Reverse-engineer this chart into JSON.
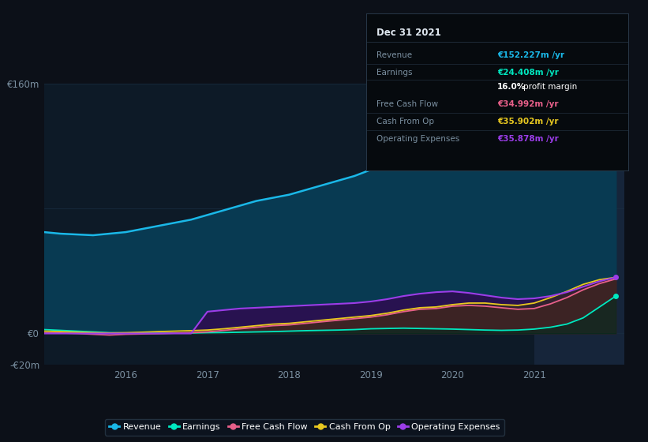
{
  "bg_color": "#0c1018",
  "plot_bg_color": "#0d1a27",
  "highlight_bg_color": "#16253a",
  "grid_color": "#1a2e42",
  "axis_label_color": "#7a8fa0",
  "title_color": "#ffffff",
  "years": [
    2015.0,
    2015.2,
    2015.4,
    2015.6,
    2015.8,
    2016.0,
    2016.2,
    2016.4,
    2016.6,
    2016.8,
    2017.0,
    2017.2,
    2017.4,
    2017.6,
    2017.8,
    2018.0,
    2018.2,
    2018.4,
    2018.6,
    2018.8,
    2019.0,
    2019.2,
    2019.4,
    2019.6,
    2019.8,
    2020.0,
    2020.2,
    2020.4,
    2020.6,
    2020.8,
    2021.0,
    2021.2,
    2021.4,
    2021.6,
    2021.8,
    2022.0
  ],
  "revenue": [
    65,
    64,
    63.5,
    63,
    64,
    65,
    67,
    69,
    71,
    73,
    76,
    79,
    82,
    85,
    87,
    89,
    92,
    95,
    98,
    101,
    105,
    109,
    113,
    116,
    118,
    120,
    117,
    113,
    110,
    109,
    111,
    118,
    127,
    138,
    148,
    152
  ],
  "earnings": [
    2.5,
    2.0,
    1.5,
    1.0,
    0.5,
    0.3,
    0.2,
    0.1,
    0.2,
    0.3,
    0.5,
    0.6,
    0.8,
    1.0,
    1.2,
    1.5,
    1.8,
    2.0,
    2.2,
    2.5,
    3.0,
    3.2,
    3.4,
    3.2,
    3.0,
    2.8,
    2.5,
    2.2,
    2.0,
    2.2,
    2.8,
    4.0,
    6.0,
    10.0,
    17.0,
    24
  ],
  "free_cash_flow": [
    0.5,
    0.3,
    0.0,
    -0.5,
    -1.0,
    -0.5,
    -0.3,
    -0.1,
    0.2,
    0.5,
    1.0,
    2.0,
    3.0,
    4.0,
    5.0,
    5.5,
    6.5,
    7.5,
    8.5,
    9.5,
    10.5,
    12.0,
    14.0,
    15.5,
    16.0,
    17.5,
    18.0,
    17.5,
    16.5,
    15.5,
    16.0,
    19.0,
    23.0,
    28.0,
    32.0,
    35
  ],
  "cash_from_op": [
    1.5,
    1.2,
    0.8,
    0.5,
    0.3,
    0.5,
    0.8,
    1.2,
    1.5,
    1.8,
    2.2,
    3.0,
    4.0,
    5.0,
    6.0,
    6.5,
    7.5,
    8.5,
    9.5,
    10.5,
    11.5,
    13.0,
    15.0,
    16.5,
    17.0,
    18.5,
    19.5,
    19.5,
    18.5,
    18.0,
    19.5,
    23.0,
    27.0,
    31.5,
    34.5,
    36
  ],
  "operating_expenses": [
    0,
    0,
    0,
    0,
    0,
    0,
    0,
    0,
    0,
    0,
    14,
    15,
    16,
    16.5,
    17,
    17.5,
    18,
    18.5,
    19,
    19.5,
    20.5,
    22,
    24,
    25.5,
    26.5,
    27,
    26,
    24.5,
    23,
    22,
    22.5,
    24,
    26.5,
    30,
    33.5,
    36
  ],
  "revenue_color": "#1ab8e8",
  "earnings_color": "#00e8c0",
  "free_cash_flow_color": "#e8608a",
  "cash_from_op_color": "#e8c820",
  "operating_expenses_color": "#9b3de8",
  "revenue_fill": "#083a52",
  "opex_fill": "#2a1050",
  "fcf_fill": "#4a1830",
  "cfo_fill": "#3a3010",
  "earnings_fill": "#002a20",
  "xmin": 2015.0,
  "xmax": 2022.1,
  "ymin": -20,
  "ymax": 160,
  "highlight_x_start": 2021.0,
  "y_ticks": [
    160,
    0,
    -20
  ],
  "y_tick_labels": [
    "€160m",
    "€0",
    "-€20m"
  ],
  "x_ticks": [
    2016,
    2017,
    2018,
    2019,
    2020,
    2021
  ],
  "x_tick_labels": [
    "2016",
    "2017",
    "2018",
    "2019",
    "2020",
    "2021"
  ],
  "tooltip": {
    "title": "Dec 31 2021",
    "rows": [
      {
        "label": "Revenue",
        "value": "€152.227m /yr",
        "value_color": "#1ab8e8"
      },
      {
        "label": "Earnings",
        "value": "€24.408m /yr",
        "value_color": "#00e8c0"
      },
      {
        "label": "",
        "value": "16.0% profit margin",
        "value_color": "#ffffff"
      },
      {
        "label": "Free Cash Flow",
        "value": "€34.992m /yr",
        "value_color": "#e8608a"
      },
      {
        "label": "Cash From Op",
        "value": "€35.902m /yr",
        "value_color": "#e8c820"
      },
      {
        "label": "Operating Expenses",
        "value": "€35.878m /yr",
        "value_color": "#9b3de8"
      }
    ],
    "bg_color": "#060a0e",
    "border_color": "#283848",
    "title_color": "#e0e8f0",
    "label_color": "#7a8fa0"
  },
  "legend": [
    {
      "label": "Revenue",
      "color": "#1ab8e8"
    },
    {
      "label": "Earnings",
      "color": "#00e8c0"
    },
    {
      "label": "Free Cash Flow",
      "color": "#e8608a"
    },
    {
      "label": "Cash From Op",
      "color": "#e8c820"
    },
    {
      "label": "Operating Expenses",
      "color": "#9b3de8"
    }
  ],
  "legend_bg_color": "#0c1420",
  "legend_border_color": "#283848"
}
